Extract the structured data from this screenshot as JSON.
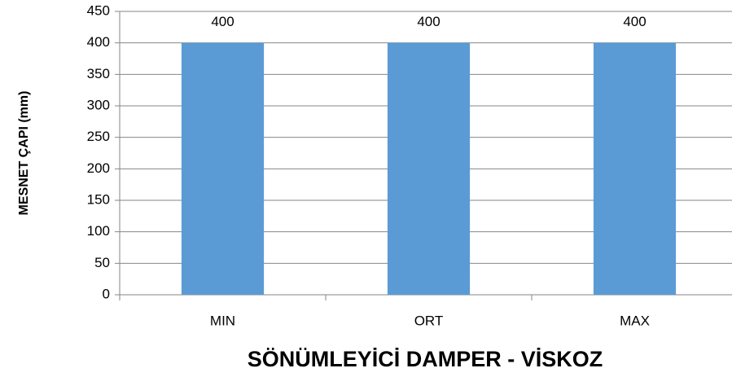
{
  "chart_data": {
    "type": "bar",
    "categories": [
      "MIN",
      "ORT",
      "MAX"
    ],
    "values": [
      400,
      400,
      400
    ],
    "color": "#5b9bd5",
    "ylim": [
      0,
      450
    ],
    "yticks": [
      0,
      50,
      100,
      150,
      200,
      250,
      300,
      350,
      400,
      450
    ],
    "grid": true,
    "x_label": "SÖNÜMLEYİCİ DAMPER - VİSKOZ",
    "y_label": "MESNET ÇAPI (mm)"
  }
}
